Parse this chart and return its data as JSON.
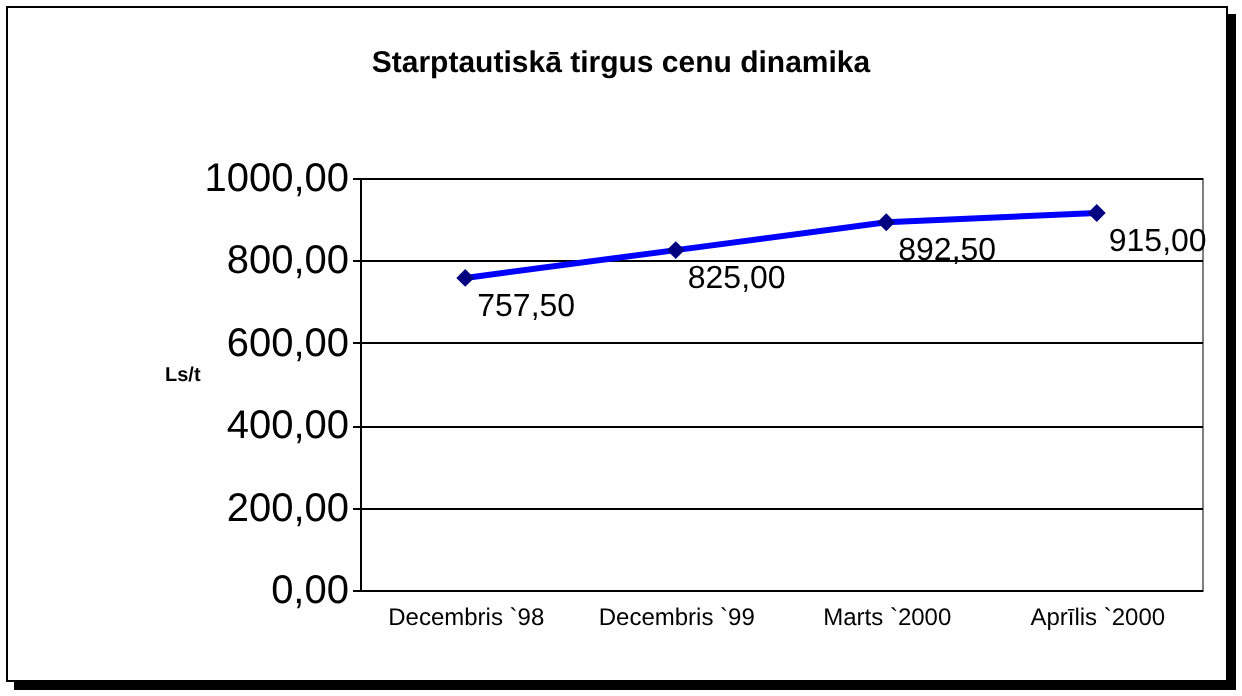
{
  "chart_data": {
    "type": "line",
    "title": "Starptautiskā tirgus cenu dinamika",
    "ylabel": "Ls/t",
    "categories": [
      "Decembris `98",
      "Decembris `99",
      "Marts `2000",
      "Aprīlis `2000"
    ],
    "series": [
      {
        "color": "#0000ff",
        "values": [
          757.5,
          825,
          892.5,
          915
        ],
        "value_labels": [
          "757,50",
          "825,00",
          "892,50",
          "915,00"
        ]
      }
    ],
    "ylim": [
      0,
      1000
    ],
    "yticks": [
      {
        "value": 0,
        "label": "0,00"
      },
      {
        "value": 200,
        "label": "200,00"
      },
      {
        "value": 400,
        "label": "400,00"
      },
      {
        "value": 600,
        "label": "600,00"
      },
      {
        "value": 800,
        "label": "800,00"
      },
      {
        "value": 1000,
        "label": "1000,00"
      }
    ],
    "grid": "y",
    "marker": "diamond",
    "line_style": "solid"
  }
}
